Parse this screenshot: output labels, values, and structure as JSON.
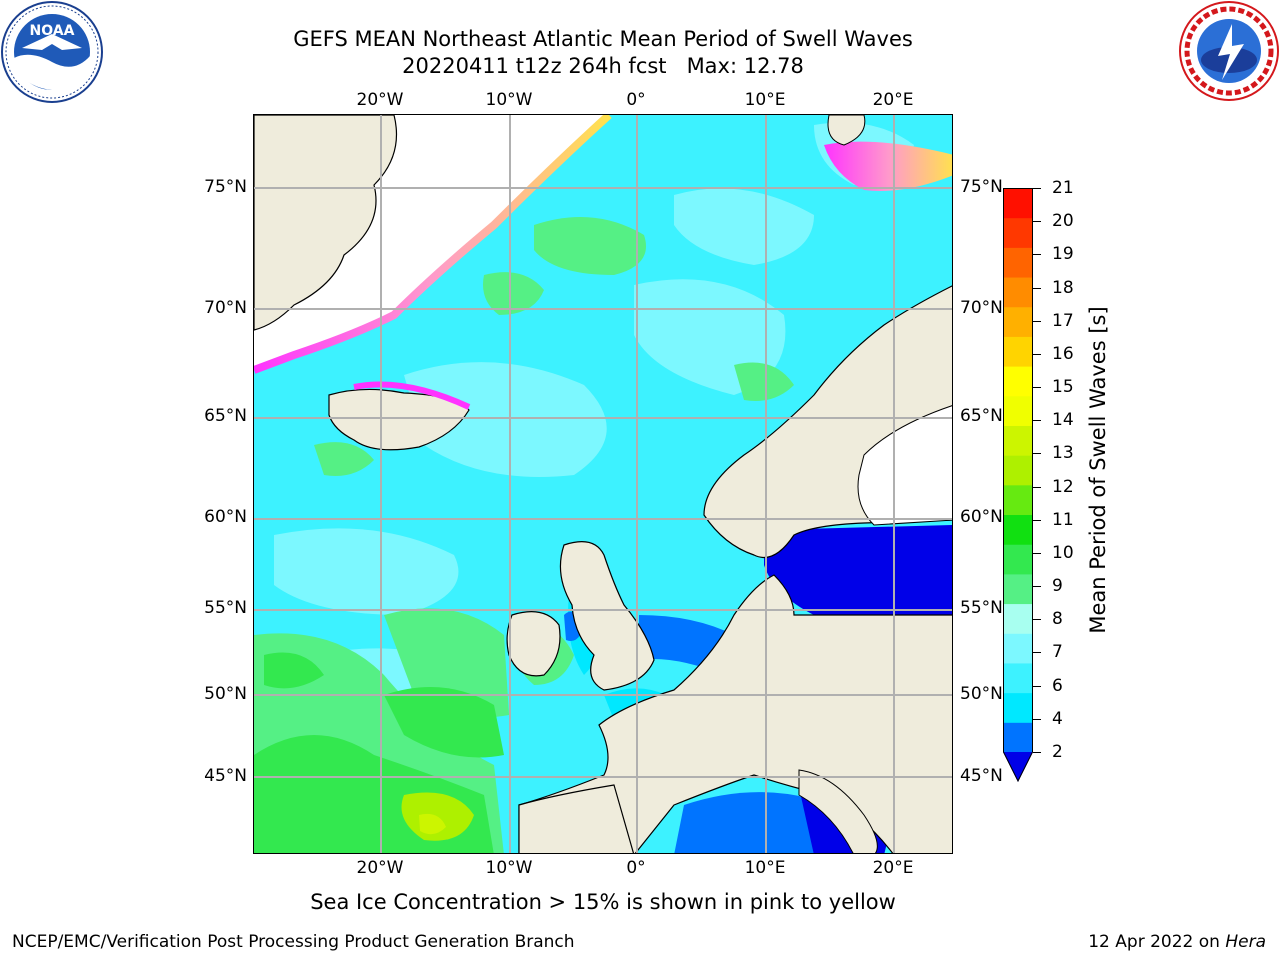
{
  "header": {
    "title_line1": "GEFS MEAN Northeast Atlantic Mean Period of Swell Waves",
    "title_line2": "20220411 t12z 264h fcst   Max: 12.78"
  },
  "logos": {
    "left": "noaa-logo",
    "right": "nws-logo"
  },
  "map": {
    "lon_labels": [
      "20°W",
      "10°W",
      "0°",
      "10°E",
      "20°E"
    ],
    "lat_labels": [
      "75°N",
      "70°N",
      "65°N",
      "60°N",
      "55°N",
      "50°N",
      "45°N"
    ],
    "grid": true,
    "colors": {
      "land": "#efecdc",
      "ice_fill": "#ffffff",
      "coast": "#000000",
      "grid": "#b0b0b0"
    }
  },
  "colorbar": {
    "label": "Mean Period of Swell Waves [s]",
    "ticks": [
      "21",
      "20",
      "19",
      "18",
      "17",
      "16",
      "15",
      "14",
      "13",
      "12",
      "11",
      "10",
      "9",
      "8",
      "7",
      "6",
      "4",
      "2"
    ],
    "colors_bottom_to_top": [
      "#0074ff",
      "#00e8ff",
      "#3df2ff",
      "#7cf8ff",
      "#a8fff0",
      "#55f085",
      "#33e84f",
      "#11e011",
      "#66ea11",
      "#aef000",
      "#ccf500",
      "#f0ff00",
      "#ffff00",
      "#ffd400",
      "#ffb000",
      "#ff8c00",
      "#ff6400",
      "#ff3800",
      "#ff1000"
    ],
    "under_color": "#0000e8"
  },
  "captions": {
    "ice_note": "Sea Ice Concentration > 15% is shown in pink to yellow",
    "producer": "NCEP/EMC/Verification Post Processing Product Generation Branch",
    "date_prefix": "12 Apr 2022 on ",
    "host": "Hera"
  }
}
